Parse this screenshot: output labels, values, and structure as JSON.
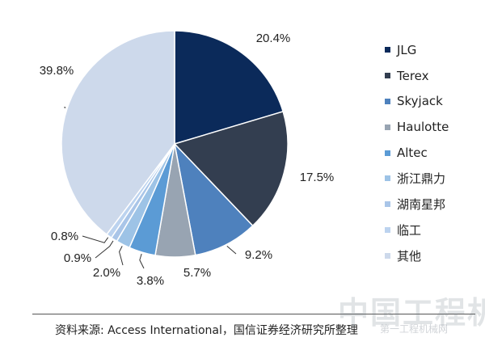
{
  "chart_data": {
    "type": "pie",
    "series": [
      {
        "name": "JLG",
        "value": 20.4,
        "label": "20.4%",
        "color": "#0b2a5a"
      },
      {
        "name": "Terex",
        "value": 17.5,
        "label": "17.5%",
        "color": "#333e50"
      },
      {
        "name": "Skyjack",
        "value": 9.2,
        "label": "9.2%",
        "color": "#4e81bd"
      },
      {
        "name": "Haulotte",
        "value": 5.7,
        "label": "5.7%",
        "color": "#98a4b2"
      },
      {
        "name": "Altec",
        "value": 3.8,
        "label": "3.8%",
        "color": "#5b9bd5"
      },
      {
        "name": "浙江鼎力",
        "value": 2.0,
        "label": "2.0%",
        "color": "#9dc3e6"
      },
      {
        "name": "湖南星邦",
        "value": 0.9,
        "label": "0.9%",
        "color": "#a9c5e8"
      },
      {
        "name": "临工",
        "value": 0.8,
        "label": "0.8%",
        "color": "#bcd3ef"
      },
      {
        "name": "其他",
        "value": 39.8,
        "label": "39.8%",
        "color": "#cdd9eb"
      }
    ],
    "legend_position": "right"
  },
  "source_text": "资料来源: Access International，国信证券经济研究所整理",
  "watermark_text": "中国工程机械",
  "watermark_sub": "第一工程机械网"
}
